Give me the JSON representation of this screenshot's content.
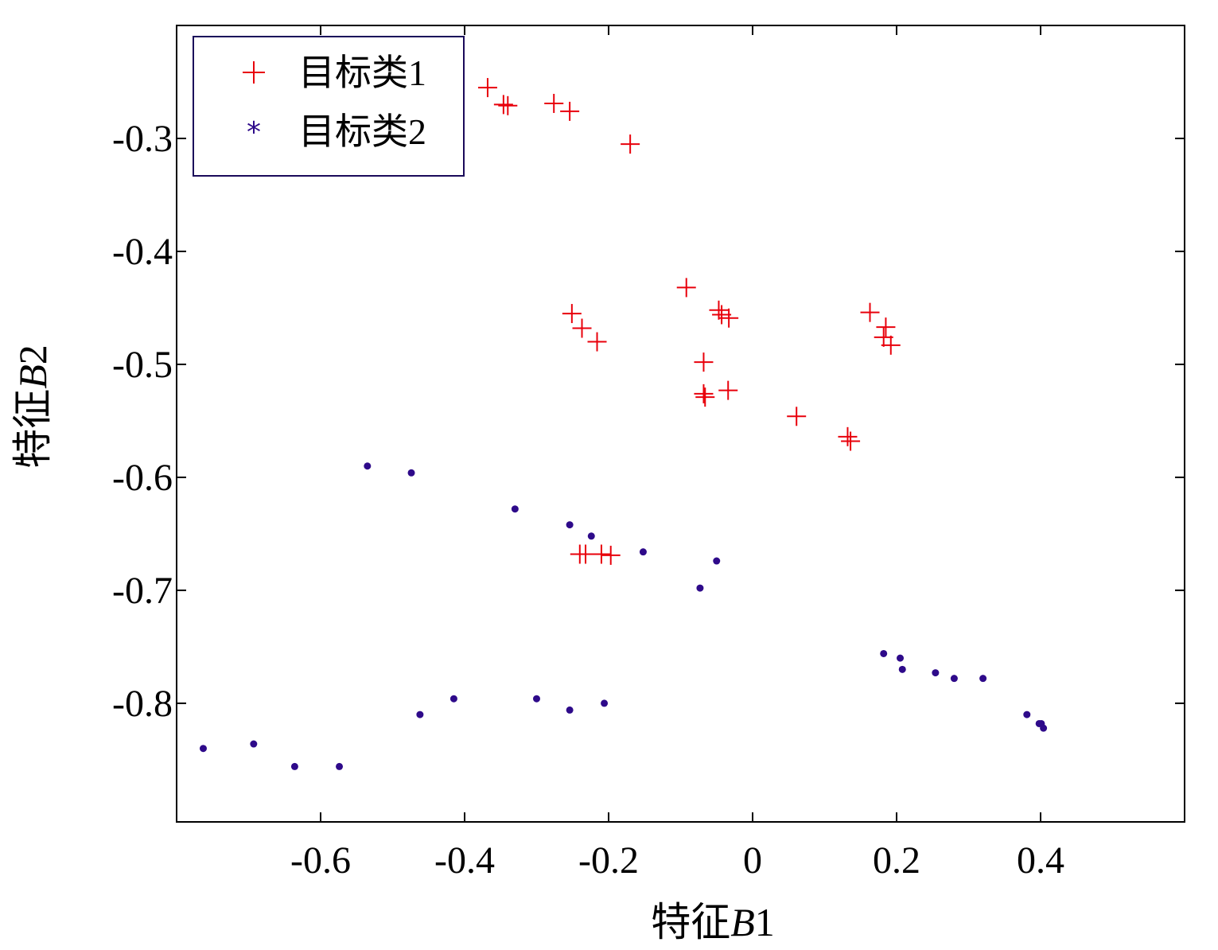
{
  "chart_data": {
    "type": "scatter",
    "title": "",
    "xlabel_prefix": "特征",
    "xlabel_var": "B",
    "xlabel_suffix": "1",
    "ylabel_prefix": "特征",
    "ylabel_var": "B",
    "ylabel_suffix": "2",
    "xlim": [
      -0.8,
      0.6
    ],
    "ylim": [
      -0.905,
      -0.2
    ],
    "x_ticks": [
      -0.6,
      -0.4,
      -0.2,
      0,
      0.2,
      0.4
    ],
    "x_tick_labels": [
      "-0.6",
      "-0.4",
      "-0.2",
      "0",
      "0.2",
      "0.4"
    ],
    "y_ticks": [
      -0.3,
      -0.4,
      -0.5,
      -0.6,
      -0.7,
      -0.8
    ],
    "y_tick_labels": [
      "-0.3",
      "-0.4",
      "-0.5",
      "-0.6",
      "-0.7",
      "-0.8"
    ],
    "grid": false,
    "legend_position": "top-left",
    "series": [
      {
        "name": "目标类1",
        "marker": "plus",
        "color": "#e8000b",
        "points": [
          [
            -0.368,
            -0.255
          ],
          [
            -0.346,
            -0.27
          ],
          [
            -0.34,
            -0.271
          ],
          [
            -0.276,
            -0.269
          ],
          [
            -0.254,
            -0.276
          ],
          [
            -0.17,
            -0.305
          ],
          [
            -0.092,
            -0.432
          ],
          [
            -0.251,
            -0.455
          ],
          [
            -0.237,
            -0.468
          ],
          [
            -0.216,
            -0.48
          ],
          [
            -0.047,
            -0.452
          ],
          [
            -0.043,
            -0.456
          ],
          [
            -0.033,
            -0.459
          ],
          [
            0.163,
            -0.454
          ],
          [
            0.185,
            -0.467
          ],
          [
            0.182,
            -0.476
          ],
          [
            0.192,
            -0.483
          ],
          [
            -0.068,
            -0.498
          ],
          [
            -0.068,
            -0.526
          ],
          [
            -0.066,
            -0.529
          ],
          [
            -0.034,
            -0.523
          ],
          [
            0.061,
            -0.546
          ],
          [
            0.132,
            -0.564
          ],
          [
            0.136,
            -0.568
          ],
          [
            -0.24,
            -0.668
          ],
          [
            -0.232,
            -0.668
          ],
          [
            -0.21,
            -0.668
          ],
          [
            -0.197,
            -0.669
          ]
        ]
      },
      {
        "name": "目标类2",
        "marker": "dot",
        "color": "#2e0a8a",
        "points": [
          [
            -0.763,
            -0.84
          ],
          [
            -0.693,
            -0.836
          ],
          [
            -0.636,
            -0.856
          ],
          [
            -0.574,
            -0.856
          ],
          [
            -0.535,
            -0.59
          ],
          [
            -0.474,
            -0.596
          ],
          [
            -0.462,
            -0.81
          ],
          [
            -0.415,
            -0.796
          ],
          [
            -0.33,
            -0.628
          ],
          [
            -0.3,
            -0.796
          ],
          [
            -0.254,
            -0.642
          ],
          [
            -0.254,
            -0.806
          ],
          [
            -0.224,
            -0.652
          ],
          [
            -0.206,
            -0.8
          ],
          [
            -0.152,
            -0.666
          ],
          [
            -0.05,
            -0.674
          ],
          [
            -0.073,
            -0.698
          ],
          [
            0.182,
            -0.756
          ],
          [
            0.205,
            -0.76
          ],
          [
            0.208,
            -0.77
          ],
          [
            0.254,
            -0.773
          ],
          [
            0.28,
            -0.778
          ],
          [
            0.32,
            -0.778
          ],
          [
            0.381,
            -0.81
          ],
          [
            0.398,
            -0.818
          ],
          [
            0.401,
            -0.818
          ],
          [
            0.404,
            -0.822
          ]
        ]
      }
    ]
  }
}
